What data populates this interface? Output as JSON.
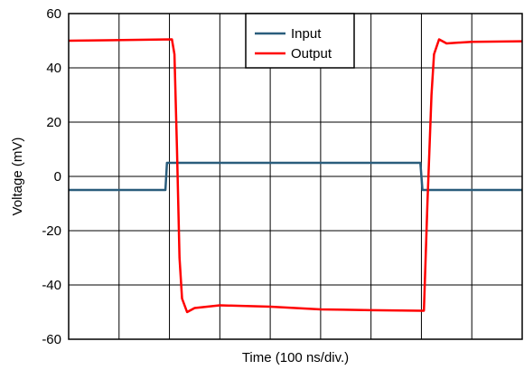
{
  "chart_data": {
    "type": "line",
    "title": "",
    "xlabel": "Time (100 ns/div.)",
    "ylabel": "Voltage (mV)",
    "ylim": [
      -60,
      60
    ],
    "yticks": [
      "60",
      "40",
      "20",
      "0",
      "-20",
      "-40",
      "-60"
    ],
    "xlim": [
      0,
      9
    ],
    "xunit_note": "divisions",
    "grid": true,
    "legend_position": "top-center",
    "series": [
      {
        "name": "Input",
        "color": "#2a5d7c",
        "points": [
          [
            0,
            -5
          ],
          [
            1.92,
            -5
          ],
          [
            1.95,
            5
          ],
          [
            6.98,
            5
          ],
          [
            7.02,
            -5
          ],
          [
            9,
            -5
          ]
        ]
      },
      {
        "name": "Output",
        "color": "#ff0000",
        "points": [
          [
            0,
            50
          ],
          [
            2.05,
            50.5
          ],
          [
            2.1,
            45
          ],
          [
            2.15,
            10
          ],
          [
            2.2,
            -30
          ],
          [
            2.25,
            -45
          ],
          [
            2.35,
            -50
          ],
          [
            2.5,
            -48.5
          ],
          [
            3.0,
            -47.5
          ],
          [
            4.0,
            -48
          ],
          [
            5.0,
            -49
          ],
          [
            6.0,
            -49.3
          ],
          [
            7.0,
            -49.5
          ],
          [
            7.05,
            -49.5
          ],
          [
            7.12,
            -10
          ],
          [
            7.2,
            30
          ],
          [
            7.25,
            45
          ],
          [
            7.35,
            50.5
          ],
          [
            7.5,
            49
          ],
          [
            8.0,
            49.6
          ],
          [
            9,
            49.8
          ]
        ]
      }
    ]
  }
}
